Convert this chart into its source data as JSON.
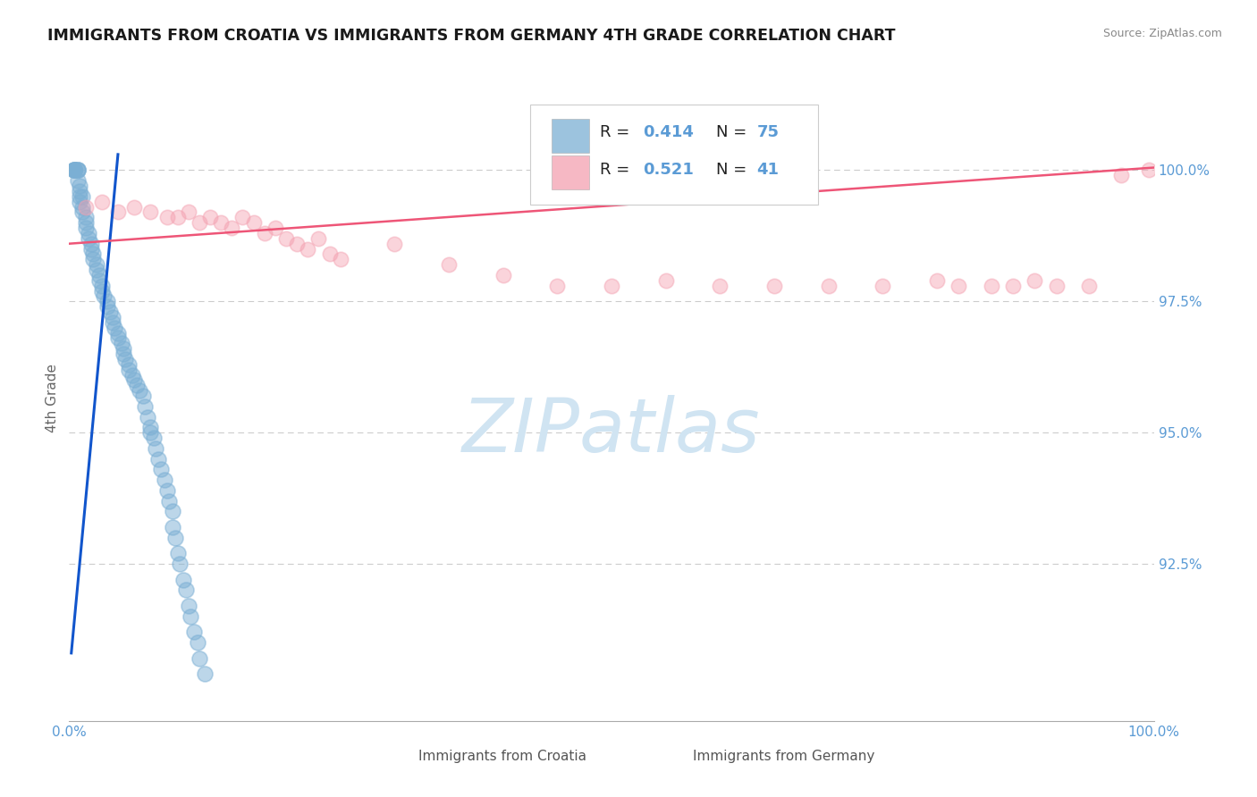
{
  "title": "IMMIGRANTS FROM CROATIA VS IMMIGRANTS FROM GERMANY 4TH GRADE CORRELATION CHART",
  "source": "Source: ZipAtlas.com",
  "label_croatia": "Immigrants from Croatia",
  "label_germany": "Immigrants from Germany",
  "ylabel": "4th Grade",
  "xlim": [
    0.0,
    100.0
  ],
  "ylim": [
    89.5,
    101.8
  ],
  "yticks": [
    92.5,
    95.0,
    97.5,
    100.0
  ],
  "ytick_labels": [
    "92.5%",
    "95.0%",
    "97.5%",
    "100.0%"
  ],
  "xtick_labels": [
    "0.0%",
    "100.0%"
  ],
  "legend_r_croatia": "0.414",
  "legend_n_croatia": "75",
  "legend_r_germany": "0.521",
  "legend_n_germany": "41",
  "color_croatia": "#7BAFD4",
  "color_germany": "#F4A0B0",
  "color_trend_croatia": "#1155CC",
  "color_trend_germany": "#EE5577",
  "color_axis": "#5B9BD5",
  "color_grid": "#CCCCCC",
  "color_watermark": "#D0E4F2",
  "title_color": "#1A1A1A",
  "croatia_x": [
    0.5,
    0.5,
    0.5,
    0.5,
    0.5,
    0.8,
    0.8,
    0.8,
    0.8,
    1.0,
    1.0,
    1.0,
    1.0,
    1.2,
    1.2,
    1.2,
    1.5,
    1.5,
    1.5,
    1.8,
    1.8,
    2.0,
    2.0,
    2.2,
    2.2,
    2.5,
    2.5,
    2.8,
    2.8,
    3.0,
    3.0,
    3.2,
    3.5,
    3.5,
    3.8,
    4.0,
    4.0,
    4.2,
    4.5,
    4.5,
    4.8,
    5.0,
    5.0,
    5.2,
    5.5,
    5.5,
    5.8,
    6.0,
    6.2,
    6.5,
    6.8,
    7.0,
    7.2,
    7.5,
    7.5,
    7.8,
    8.0,
    8.2,
    8.5,
    8.8,
    9.0,
    9.2,
    9.5,
    9.5,
    9.8,
    10.0,
    10.2,
    10.5,
    10.8,
    11.0,
    11.2,
    11.5,
    11.8,
    12.0,
    12.5
  ],
  "croatia_y": [
    100.0,
    100.0,
    100.0,
    100.0,
    100.0,
    100.0,
    100.0,
    100.0,
    99.8,
    99.7,
    99.6,
    99.5,
    99.4,
    99.5,
    99.3,
    99.2,
    99.1,
    99.0,
    98.9,
    98.8,
    98.7,
    98.6,
    98.5,
    98.4,
    98.3,
    98.2,
    98.1,
    98.0,
    97.9,
    97.8,
    97.7,
    97.6,
    97.5,
    97.4,
    97.3,
    97.2,
    97.1,
    97.0,
    96.9,
    96.8,
    96.7,
    96.6,
    96.5,
    96.4,
    96.3,
    96.2,
    96.1,
    96.0,
    95.9,
    95.8,
    95.7,
    95.5,
    95.3,
    95.1,
    95.0,
    94.9,
    94.7,
    94.5,
    94.3,
    94.1,
    93.9,
    93.7,
    93.5,
    93.2,
    93.0,
    92.7,
    92.5,
    92.2,
    92.0,
    91.7,
    91.5,
    91.2,
    91.0,
    90.7,
    90.4
  ],
  "germany_x": [
    1.5,
    3.0,
    4.5,
    6.0,
    7.5,
    9.0,
    10.0,
    11.0,
    12.0,
    13.0,
    14.0,
    15.0,
    16.0,
    17.0,
    18.0,
    19.0,
    20.0,
    21.0,
    22.0,
    23.0,
    24.0,
    25.0,
    30.0,
    35.0,
    40.0,
    45.0,
    50.0,
    55.0,
    60.0,
    65.0,
    70.0,
    75.0,
    80.0,
    82.0,
    85.0,
    87.0,
    89.0,
    91.0,
    94.0,
    97.0,
    99.5
  ],
  "germany_y": [
    99.3,
    99.4,
    99.2,
    99.3,
    99.2,
    99.1,
    99.1,
    99.2,
    99.0,
    99.1,
    99.0,
    98.9,
    99.1,
    99.0,
    98.8,
    98.9,
    98.7,
    98.6,
    98.5,
    98.7,
    98.4,
    98.3,
    98.6,
    98.2,
    98.0,
    97.8,
    97.8,
    97.9,
    97.8,
    97.8,
    97.8,
    97.8,
    97.9,
    97.8,
    97.8,
    97.8,
    97.9,
    97.8,
    97.8,
    99.9,
    100.0
  ],
  "cro_trend_x0": 0.2,
  "cro_trend_y0": 90.8,
  "cro_trend_x1": 4.5,
  "cro_trend_y1": 100.3,
  "ger_trend_x0": 0.0,
  "ger_trend_y0": 98.6,
  "ger_trend_x1": 100.0,
  "ger_trend_y1": 100.05
}
